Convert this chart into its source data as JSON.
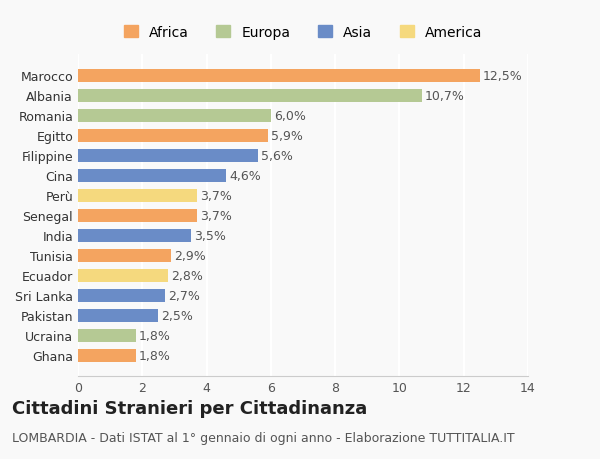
{
  "countries": [
    "Ghana",
    "Ucraina",
    "Pakistan",
    "Sri Lanka",
    "Ecuador",
    "Tunisia",
    "India",
    "Senegal",
    "Perù",
    "Cina",
    "Filippine",
    "Egitto",
    "Romania",
    "Albania",
    "Marocco"
  ],
  "values": [
    1.8,
    1.8,
    2.5,
    2.7,
    2.8,
    2.9,
    3.5,
    3.7,
    3.7,
    4.6,
    5.6,
    5.9,
    6.0,
    10.7,
    12.5
  ],
  "labels": [
    "1,8%",
    "1,8%",
    "2,5%",
    "2,7%",
    "2,8%",
    "2,9%",
    "3,5%",
    "3,7%",
    "3,7%",
    "4,6%",
    "5,6%",
    "5,9%",
    "6,0%",
    "10,7%",
    "12,5%"
  ],
  "continents": [
    "Africa",
    "Europa",
    "Asia",
    "Asia",
    "America",
    "Africa",
    "Asia",
    "Africa",
    "America",
    "Asia",
    "Asia",
    "Africa",
    "Europa",
    "Europa",
    "Africa"
  ],
  "colors": {
    "Africa": "#F4A460",
    "Europa": "#B5C994",
    "Asia": "#6A8CC7",
    "America": "#F5D97E"
  },
  "legend_order": [
    "Africa",
    "Europa",
    "Asia",
    "America"
  ],
  "legend_colors": [
    "#F4A460",
    "#B5C994",
    "#6A8CC7",
    "#F5D97E"
  ],
  "title": "Cittadini Stranieri per Cittadinanza",
  "subtitle": "LOMBARDIA - Dati ISTAT al 1° gennaio di ogni anno - Elaborazione TUTTITALIA.IT",
  "xlim": [
    0,
    14
  ],
  "xticks": [
    0,
    2,
    4,
    6,
    8,
    10,
    12,
    14
  ],
  "background_color": "#f9f9f9",
  "grid_color": "#ffffff",
  "title_fontsize": 13,
  "subtitle_fontsize": 9,
  "label_fontsize": 9,
  "tick_fontsize": 9
}
